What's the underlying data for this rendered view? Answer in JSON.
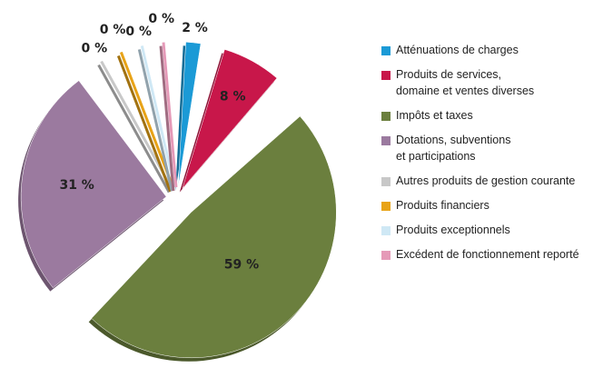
{
  "chart_data": {
    "type": "pie",
    "categories": [
      "Atténuations de charges",
      "Produits de services,\ndomaine et ventes diverses",
      "Impôts et taxes",
      "Dotations, subventions\net participations",
      "Autres produits de gestion courante",
      "Produits financiers",
      "Produits exceptionnels",
      "Excédent de fonctionnement reporté"
    ],
    "values": [
      2,
      8,
      59,
      31,
      0,
      0,
      0,
      0
    ],
    "value_labels": [
      "2 %",
      "8 %",
      "59 %",
      "31 %",
      "0 %",
      "0 %",
      "0 %",
      "0 %"
    ],
    "colors": [
      "#1b9ad6",
      "#c8174a",
      "#6b7f3e",
      "#9b7a9f",
      "#c8c8c8",
      "#e8a317",
      "#cfe8f5",
      "#e59ab8"
    ],
    "legend": "right"
  }
}
